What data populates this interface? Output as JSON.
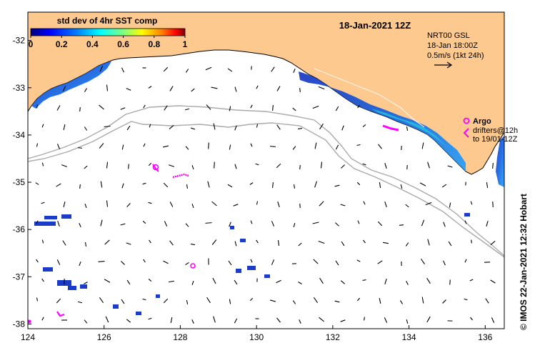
{
  "map": {
    "title": "18-Jan-2021 12Z",
    "colorbar": {
      "label": "std dev of 4hr SST comp",
      "ticks": [
        "0",
        "0.2",
        "0.4",
        "0.6",
        "0.8",
        "1"
      ],
      "colors": [
        "#00007f",
        "#0000ff",
        "#007fff",
        "#00ffff",
        "#7fff7f",
        "#ffff00",
        "#ff7f00",
        "#ff0000",
        "#7f0000"
      ]
    },
    "current_info": {
      "line1": "NRT00 GSL",
      "line2": "18-Jan 18:00Z",
      "line3": "0.5m/s (1kt 24h)"
    },
    "argo": {
      "label": "Argo",
      "drifters_line1": "drifters@12h",
      "drifters_line2": "to 19/01-12Z",
      "color": "#ff00ff"
    },
    "x_axis": {
      "labels": [
        "124",
        "126",
        "128",
        "130",
        "132",
        "134",
        "136"
      ],
      "values": [
        124,
        126,
        128,
        130,
        132,
        134,
        136
      ],
      "range": [
        124,
        136.5
      ]
    },
    "y_axis": {
      "labels": [
        "-32",
        "-33",
        "-34",
        "-35",
        "-36",
        "-37",
        "-38"
      ],
      "values": [
        -32,
        -33,
        -34,
        -35,
        -36,
        -37,
        -38
      ],
      "range": [
        -31.4,
        -38.1
      ]
    },
    "side_label": "© IMOS 22-Jan-2021 12:32 Hobart",
    "colors": {
      "land": "#fdc98e",
      "contour": "#aaaaaa",
      "arrow": "#000000"
    }
  }
}
